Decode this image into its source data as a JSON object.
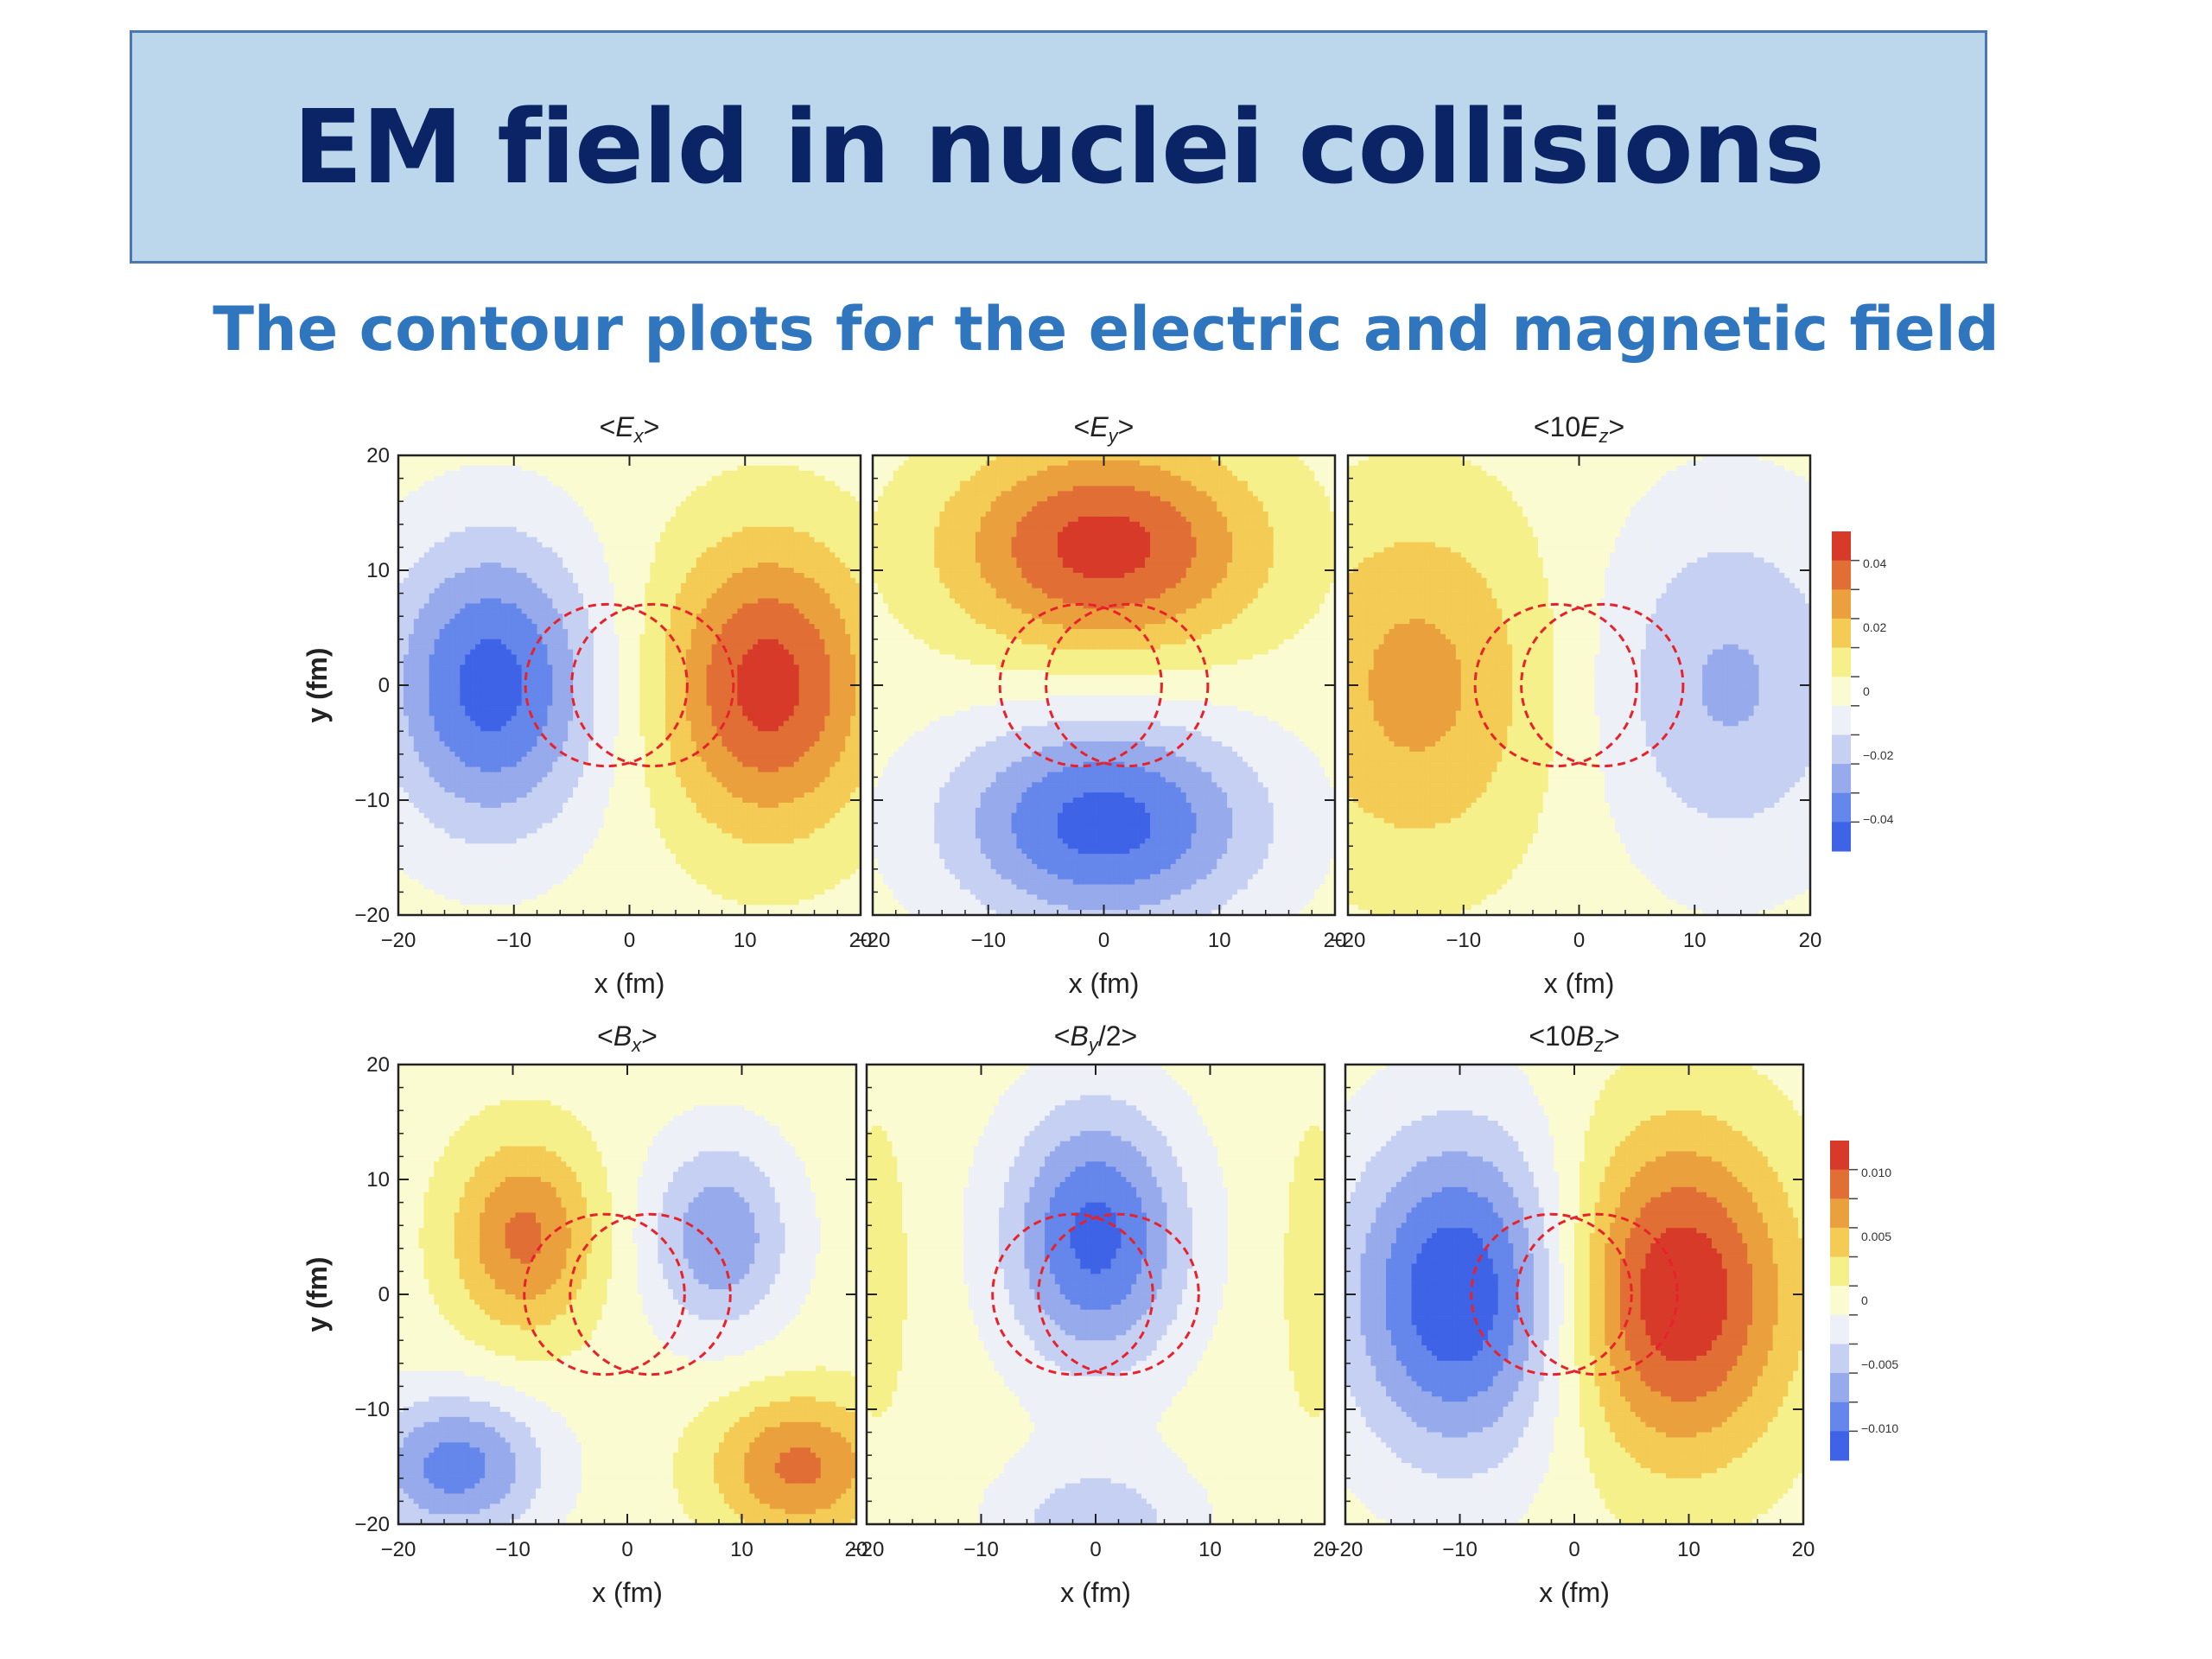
{
  "slide": {
    "title": "EM field in nuclei collisions",
    "subtitle": "The contour plots for the electric and magnetic field"
  },
  "chart_data": [
    {
      "type": "heatmap",
      "rows": [
        {
          "xlabel": "x (fm)",
          "ylabel": "y (fm)",
          "xlim": [
            -20,
            20
          ],
          "ylim": [
            -20,
            20
          ],
          "xticks": [
            "−20",
            "−10",
            "0",
            "10",
            "20"
          ],
          "yticks": [
            "20",
            "10",
            "0",
            "−10",
            "−20"
          ],
          "panels": [
            {
              "pre": "<",
              "sym": "E",
              "sub": "x",
              "post": ">",
              "field": "Ex"
            },
            {
              "pre": "<",
              "sym": "E",
              "sub": "y",
              "post": ">",
              "field": "Ey"
            },
            {
              "pre": "<10",
              "sym": "E",
              "sub": "z",
              "post": ">",
              "field": "Ez"
            }
          ],
          "colorbar": {
            "ticks": [
              "0.04",
              "0.02",
              "0",
              "−0.02",
              "−0.04"
            ],
            "range": [
              -0.05,
              0.05
            ]
          }
        },
        {
          "xlabel": "x (fm)",
          "ylabel": "y (fm)",
          "xlim": [
            -20,
            20
          ],
          "ylim": [
            -20,
            20
          ],
          "xticks": [
            "−20",
            "−10",
            "0",
            "10",
            "20"
          ],
          "yticks": [
            "20",
            "10",
            "0",
            "−10",
            "−20"
          ],
          "panels": [
            {
              "pre": "<",
              "sym": "B",
              "sub": "x",
              "post": ">",
              "field": "Bx"
            },
            {
              "pre": "<",
              "sym": "B",
              "sub": "y",
              "post": "/2>",
              "field": "By"
            },
            {
              "pre": "<10",
              "sym": "B",
              "sub": "z",
              "post": ">",
              "field": "Bz"
            }
          ],
          "colorbar": {
            "ticks": [
              "0.010",
              "0.005",
              "0",
              "−0.005",
              "−0.010"
            ],
            "range": [
              -0.0125,
              0.0125
            ]
          }
        }
      ],
      "nuclei_outlines": {
        "centers_x": [
          -2,
          2
        ],
        "center_y": 0,
        "radius": 7,
        "style": "red dashed circles"
      },
      "colors": {
        "scale": [
          "#3f63e6",
          "#6586ea",
          "#97aaeb",
          "#c6d0f3",
          "#eef0f7",
          "#fbfbd2",
          "#f6f08a",
          "#f3cb55",
          "#eaa03d",
          "#e16e35",
          "#d83a2a"
        ],
        "nuclei": "#e8222a"
      }
    }
  ]
}
